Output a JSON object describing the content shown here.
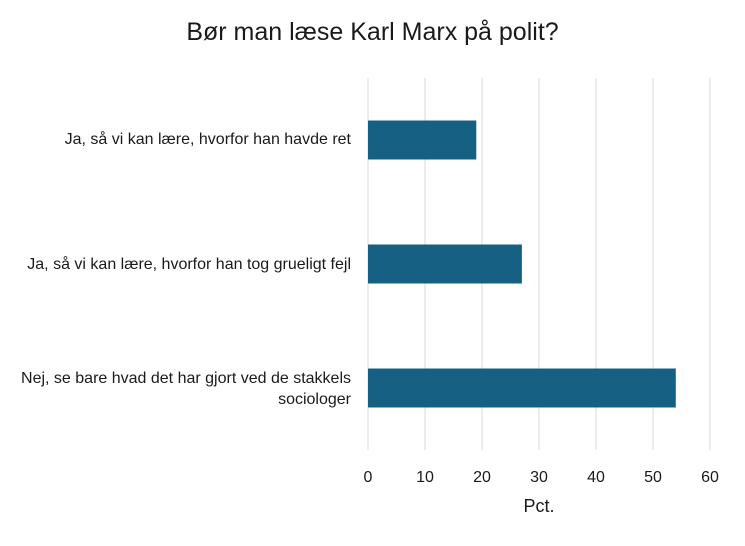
{
  "chart_data": {
    "type": "bar",
    "orientation": "horizontal",
    "title": "Bør man læse Karl Marx på polit?",
    "xlabel": "Pct.",
    "ylabel": "",
    "xlim": [
      0,
      60
    ],
    "xticks": [
      0,
      10,
      20,
      30,
      40,
      50,
      60
    ],
    "grid": true,
    "categories": [
      "Ja, så vi kan lære, hvorfor han havde ret",
      "Ja, så vi kan lære, hvorfor han tog grueligt fejl",
      "Nej, se bare hvad det har gjort ved de stakkels sociologer"
    ],
    "values": [
      19,
      27,
      54
    ],
    "bar_color": "#166083",
    "grid_color": "#d9d9d9"
  }
}
